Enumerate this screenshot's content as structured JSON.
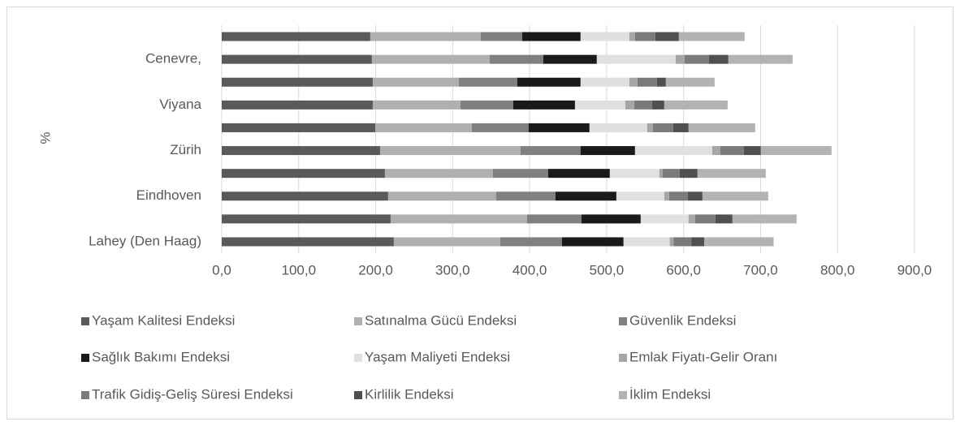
{
  "chart_data": {
    "type": "stacked-bar-horizontal",
    "y_axis_label": "%",
    "categories": [
      "Lahey (Den Haag)",
      null,
      "Eindhoven",
      null,
      "Zürih",
      null,
      "Viyana",
      null,
      "Cenevre,",
      null
    ],
    "series": [
      {
        "name": "Yaşam Kalitesi Endeksi",
        "color": "#5a5a5a",
        "values": [
          223.6,
          219.4,
          216.2,
          212,
          205.7,
          199.4,
          196.2,
          196.2,
          195.1,
          193
        ]
      },
      {
        "name": "Satınalma Gücü Endeksi",
        "color": "#b0b0b0",
        "values": [
          138.2,
          177.2,
          140.3,
          140.3,
          182.5,
          125.5,
          113.9,
          111.8,
          153,
          143.5
        ]
      },
      {
        "name": "Güvenlik Endeksi",
        "color": "#808080",
        "values": [
          80.2,
          70.7,
          77,
          71.7,
          78,
          73.8,
          68.6,
          76,
          69.6,
          53.8
        ]
      },
      {
        "name": "Sağlık Bakımı Endeksi",
        "color": "#1a1a1a",
        "values": [
          80,
          77,
          79.2,
          80.2,
          70.7,
          79.1,
          80.2,
          82.2,
          69.6,
          75.9
        ]
      },
      {
        "name": "Yaşam Maliyeti Endeksi",
        "color": "#e0e0e0",
        "values": [
          60,
          62.2,
          62.2,
          64.4,
          100.2,
          74.9,
          65.4,
          63.3,
          102.4,
          63.3
        ]
      },
      {
        "name": "Emlak Fiyatı-Gelir Oranı",
        "color": "#a6a6a6",
        "values": [
          5,
          8.5,
          6.3,
          4.2,
          10.6,
          7.4,
          11.6,
          10.6,
          11.6,
          7.4
        ]
      },
      {
        "name": "Trafik Gidiş-Geliş Süresi Endeksi",
        "color": "#7a7a7a",
        "values": [
          23,
          26.4,
          24.3,
          22.2,
          30.6,
          26.4,
          23.2,
          25.3,
          31.7,
          26.4
        ]
      },
      {
        "name": "Kirlilik Endeksi",
        "color": "#505050",
        "values": [
          17,
          22.1,
          19,
          23.1,
          22.1,
          20,
          15.8,
          11.6,
          25.2,
          30.6
        ]
      },
      {
        "name": "İklim Endeksi",
        "color": "#b3b3b3",
        "values": [
          90,
          83.3,
          85.4,
          88.7,
          91.8,
          86.5,
          82.3,
          63.3,
          83.4,
          85.4
        ]
      }
    ],
    "xlim": [
      0,
      900
    ],
    "xticks": [
      {
        "value": 0,
        "label": "0,0"
      },
      {
        "value": 100,
        "label": "100,0"
      },
      {
        "value": 200,
        "label": "200,0"
      },
      {
        "value": 300,
        "label": "300,0"
      },
      {
        "value": 400,
        "label": "400,0"
      },
      {
        "value": 500,
        "label": "500,0"
      },
      {
        "value": 600,
        "label": "600,0"
      },
      {
        "value": 700,
        "label": "700,0"
      },
      {
        "value": 800,
        "label": "800,0"
      },
      {
        "value": 900,
        "label": "900,0"
      }
    ],
    "grid": true
  }
}
